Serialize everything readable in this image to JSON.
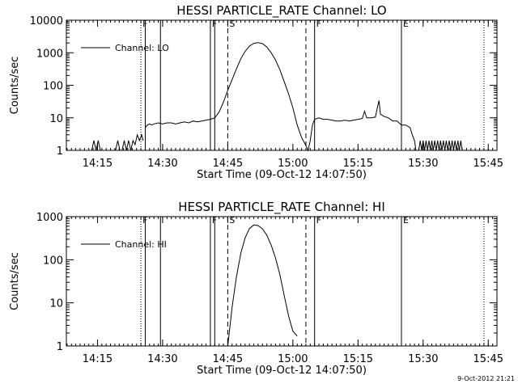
{
  "footer_timestamp": "9-Oct-2012 21:21",
  "chart_data": [
    {
      "type": "line",
      "title": "HESSI PARTICLE_RATE Channel: LO",
      "xlabel": "Start Time (09-Oct-12 14:07:50)",
      "ylabel": "Counts/sec",
      "yscale": "log",
      "ylim": [
        1,
        10000
      ],
      "xlim": [
        "14:07:50",
        "15:47:00"
      ],
      "x_ticks": [
        "14:15",
        "14:30",
        "14:45",
        "15:00",
        "15:15",
        "15:30",
        "15:45"
      ],
      "y_ticks": [
        "1",
        "10",
        "100",
        "1000",
        "10000"
      ],
      "legend": {
        "entries": [
          "Channel: LO"
        ],
        "position": "top-left"
      },
      "markers": [
        {
          "label": "F",
          "time": "14:25:00",
          "style": "dotted"
        },
        {
          "label": "",
          "time": "14:26:00",
          "style": "solid"
        },
        {
          "label": "",
          "time": "14:29:30",
          "style": "solid"
        },
        {
          "label": "F",
          "time": "14:41:00",
          "style": "solid"
        },
        {
          "label": "",
          "time": "14:42:00",
          "style": "solid"
        },
        {
          "label": "S",
          "time": "14:45:00",
          "style": "dashed"
        },
        {
          "label": "",
          "time": "15:03:00",
          "style": "dashed"
        },
        {
          "label": "F",
          "time": "15:05:00",
          "style": "solid"
        },
        {
          "label": "E",
          "time": "15:25:00",
          "style": "solid"
        },
        {
          "label": "",
          "time": "15:44:00",
          "style": "dotted"
        }
      ],
      "series": [
        {
          "name": "Channel: LO",
          "segments": [
            [
              [
                "14:13:40",
                1
              ],
              [
                "14:14:10",
                2
              ],
              [
                "14:14:40",
                1
              ],
              [
                "14:15:10",
                2
              ],
              [
                "14:15:40",
                1
              ]
            ],
            [
              [
                "14:19:10",
                1
              ],
              [
                "14:19:40",
                2
              ],
              [
                "14:20:10",
                1
              ]
            ],
            [
              [
                "14:20:40",
                1
              ],
              [
                "14:21:10",
                2
              ],
              [
                "14:21:40",
                1
              ],
              [
                "14:22:10",
                2
              ],
              [
                "14:22:40",
                1
              ],
              [
                "14:23:10",
                2
              ],
              [
                "14:23:40",
                1.5
              ],
              [
                "14:24:10",
                3
              ],
              [
                "14:24:40",
                2
              ],
              [
                "14:25:10",
                3
              ],
              [
                "14:25:30",
                2
              ]
            ],
            [
              [
                "14:26:00",
                5
              ],
              [
                "14:26:30",
                6
              ],
              [
                "14:27:00",
                6.5
              ],
              [
                "14:27:30",
                6
              ],
              [
                "14:28:00",
                6.5
              ],
              [
                "14:29:00",
                7
              ],
              [
                "14:30:00",
                6.5
              ],
              [
                "14:31:00",
                7
              ],
              [
                "14:32:00",
                7
              ],
              [
                "14:33:00",
                6.5
              ],
              [
                "14:34:00",
                7
              ],
              [
                "14:35:00",
                7.5
              ],
              [
                "14:36:00",
                7
              ],
              [
                "14:37:00",
                8
              ],
              [
                "14:38:00",
                7.5
              ],
              [
                "14:39:00",
                8
              ],
              [
                "14:40:00",
                8.5
              ],
              [
                "14:41:00",
                9
              ],
              [
                "14:42:00",
                10
              ],
              [
                "14:43:00",
                15
              ],
              [
                "14:44:00",
                30
              ],
              [
                "14:45:00",
                70
              ],
              [
                "14:46:00",
                150
              ],
              [
                "14:47:00",
                320
              ],
              [
                "14:48:00",
                650
              ],
              [
                "14:49:00",
                1100
              ],
              [
                "14:50:00",
                1600
              ],
              [
                "14:51:00",
                1950
              ],
              [
                "14:52:00",
                2050
              ],
              [
                "14:53:00",
                1900
              ],
              [
                "14:54:00",
                1500
              ],
              [
                "14:55:00",
                1000
              ],
              [
                "14:56:00",
                600
              ],
              [
                "14:57:00",
                300
              ],
              [
                "14:58:00",
                130
              ],
              [
                "14:59:00",
                55
              ],
              [
                "15:00:00",
                20
              ],
              [
                "15:01:00",
                6
              ],
              [
                "15:02:00",
                2.5
              ],
              [
                "15:03:00",
                1.4
              ],
              [
                "15:03:30",
                1
              ],
              [
                "15:04:00",
                2
              ],
              [
                "15:04:30",
                6
              ],
              [
                "15:05:00",
                9
              ],
              [
                "15:06:00",
                10
              ],
              [
                "15:07:00",
                9
              ],
              [
                "15:08:00",
                9
              ],
              [
                "15:09:00",
                8.5
              ],
              [
                "15:10:00",
                8
              ],
              [
                "15:11:00",
                8
              ],
              [
                "15:12:00",
                8.5
              ],
              [
                "15:13:00",
                8
              ],
              [
                "15:14:00",
                8.5
              ],
              [
                "15:15:00",
                9
              ],
              [
                "15:16:00",
                9.5
              ],
              [
                "15:16:30",
                16
              ],
              [
                "15:17:00",
                10
              ],
              [
                "15:18:00",
                10
              ],
              [
                "15:19:00",
                10.5
              ],
              [
                "15:19:30",
                22
              ],
              [
                "15:19:50",
                34
              ],
              [
                "15:20:10",
                13
              ],
              [
                "15:21:00",
                11
              ],
              [
                "15:22:00",
                10
              ],
              [
                "15:23:00",
                8
              ],
              [
                "15:24:00",
                8
              ],
              [
                "15:25:00",
                6
              ],
              [
                "15:26:00",
                6
              ],
              [
                "15:27:00",
                5
              ],
              [
                "15:27:30",
                3
              ],
              [
                "15:28:00",
                2
              ],
              [
                "15:28:20",
                1
              ]
            ],
            [
              [
                "15:29:00",
                1
              ],
              [
                "15:29:20",
                2
              ],
              [
                "15:29:40",
                1
              ],
              [
                "15:30:00",
                2
              ],
              [
                "15:30:20",
                1
              ],
              [
                "15:30:40",
                2
              ],
              [
                "15:31:00",
                1
              ],
              [
                "15:31:20",
                2
              ],
              [
                "15:31:40",
                1
              ],
              [
                "15:32:00",
                2
              ],
              [
                "15:32:20",
                1
              ],
              [
                "15:32:40",
                2
              ],
              [
                "15:33:00",
                1
              ],
              [
                "15:33:20",
                2
              ],
              [
                "15:33:40",
                1
              ],
              [
                "15:34:00",
                2
              ],
              [
                "15:34:20",
                1
              ],
              [
                "15:34:40",
                2
              ],
              [
                "15:35:00",
                1
              ],
              [
                "15:35:20",
                2
              ],
              [
                "15:35:40",
                1
              ],
              [
                "15:36:00",
                2
              ],
              [
                "15:36:20",
                1
              ],
              [
                "15:36:40",
                2
              ],
              [
                "15:37:00",
                1
              ],
              [
                "15:37:20",
                2
              ],
              [
                "15:37:40",
                1
              ],
              [
                "15:38:00",
                2
              ],
              [
                "15:38:20",
                1
              ],
              [
                "15:38:40",
                2
              ],
              [
                "15:39:00",
                1
              ]
            ]
          ]
        }
      ]
    },
    {
      "type": "line",
      "title": "HESSI PARTICLE_RATE Channel: HI",
      "xlabel": "Start Time (09-Oct-12 14:07:50)",
      "ylabel": "Counts/sec",
      "yscale": "log",
      "ylim": [
        1,
        1000
      ],
      "xlim": [
        "14:07:50",
        "15:47:00"
      ],
      "x_ticks": [
        "14:15",
        "14:30",
        "14:45",
        "15:00",
        "15:15",
        "15:30",
        "15:45"
      ],
      "y_ticks": [
        "1",
        "10",
        "100",
        "1000"
      ],
      "legend": {
        "entries": [
          "Channel: HI"
        ],
        "position": "top-left"
      },
      "markers": [
        {
          "label": "F",
          "time": "14:25:00",
          "style": "dotted"
        },
        {
          "label": "",
          "time": "14:26:00",
          "style": "solid"
        },
        {
          "label": "",
          "time": "14:29:30",
          "style": "solid"
        },
        {
          "label": "F",
          "time": "14:41:00",
          "style": "solid"
        },
        {
          "label": "",
          "time": "14:42:00",
          "style": "solid"
        },
        {
          "label": "S",
          "time": "14:45:00",
          "style": "dashed"
        },
        {
          "label": "",
          "time": "15:03:00",
          "style": "dashed"
        },
        {
          "label": "F",
          "time": "15:05:00",
          "style": "solid"
        },
        {
          "label": "E",
          "time": "15:25:00",
          "style": "solid"
        },
        {
          "label": "",
          "time": "15:44:00",
          "style": "dotted"
        }
      ],
      "series": [
        {
          "name": "Channel: HI",
          "segments": [
            [
              [
                "14:45:00",
                1
              ],
              [
                "14:46:00",
                8
              ],
              [
                "14:47:00",
                40
              ],
              [
                "14:48:00",
                140
              ],
              [
                "14:49:00",
                320
              ],
              [
                "14:50:00",
                530
              ],
              [
                "14:51:00",
                640
              ],
              [
                "14:52:00",
                620
              ],
              [
                "14:53:00",
                520
              ],
              [
                "14:54:00",
                370
              ],
              [
                "14:55:00",
                220
              ],
              [
                "14:56:00",
                110
              ],
              [
                "14:57:00",
                45
              ],
              [
                "14:58:00",
                15
              ],
              [
                "14:59:00",
                5
              ],
              [
                "15:00:00",
                2.2
              ],
              [
                "15:01:00",
                1.7
              ]
            ]
          ]
        }
      ]
    }
  ]
}
